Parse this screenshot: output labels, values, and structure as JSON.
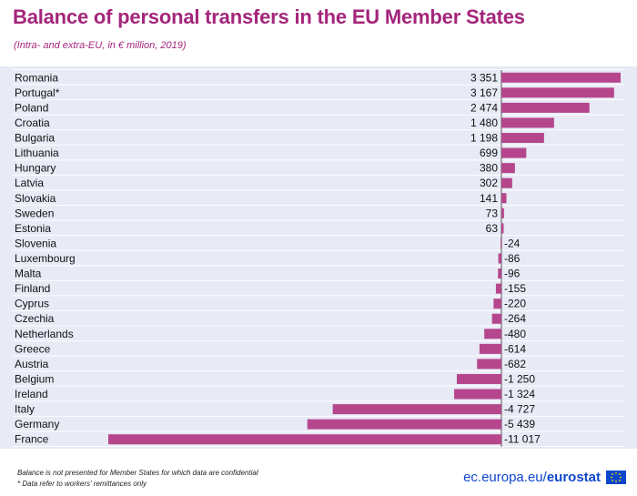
{
  "header": {
    "title": "Balance of personal transfers in the EU Member States",
    "subtitle": "(Intra- and extra-EU, in € million, 2019)"
  },
  "footer": {
    "note1": "Balance is not presented for Member States for which data are confidential",
    "note2": "* Data refer to workers' remittances only",
    "brand_domain": "ec.europa.eu/",
    "brand_name": "eurostat"
  },
  "colors": {
    "bar": "#b5468c",
    "title": "#a4257b",
    "plot_bg": "#e8eaf6",
    "brand": "#0e47cb"
  },
  "chart_data": {
    "type": "bar",
    "orientation": "horizontal",
    "categories": [
      "Romania",
      "Portugal*",
      "Poland",
      "Croatia",
      "Bulgaria",
      "Lithuania",
      "Hungary",
      "Latvia",
      "Slovakia",
      "Sweden",
      "Estonia",
      "Slovenia",
      "Luxembourg",
      "Malta",
      "Finland",
      "Cyprus",
      "Czechia",
      "Netherlands",
      "Greece",
      "Austria",
      "Belgium",
      "Ireland",
      "Italy",
      "Germany",
      "France"
    ],
    "values": [
      3351,
      3167,
      2474,
      1480,
      1198,
      699,
      380,
      302,
      141,
      73,
      63,
      -24,
      -86,
      -96,
      -155,
      -220,
      -264,
      -480,
      -614,
      -682,
      -1250,
      -1324,
      -4727,
      -5439,
      -11017
    ],
    "value_labels": [
      "3 351",
      "3 167",
      "2 474",
      "1 480",
      "1 198",
      "699",
      "380",
      "302",
      "141",
      "73",
      "63",
      "-24",
      "-86",
      "-96",
      "-155",
      "-220",
      "-264",
      "-480",
      "-614",
      "-682",
      "-1 250",
      "-1 324",
      "-4 727",
      "-5 439",
      "-11 017"
    ],
    "xlim": [
      -11017,
      3351
    ],
    "grid": true
  }
}
